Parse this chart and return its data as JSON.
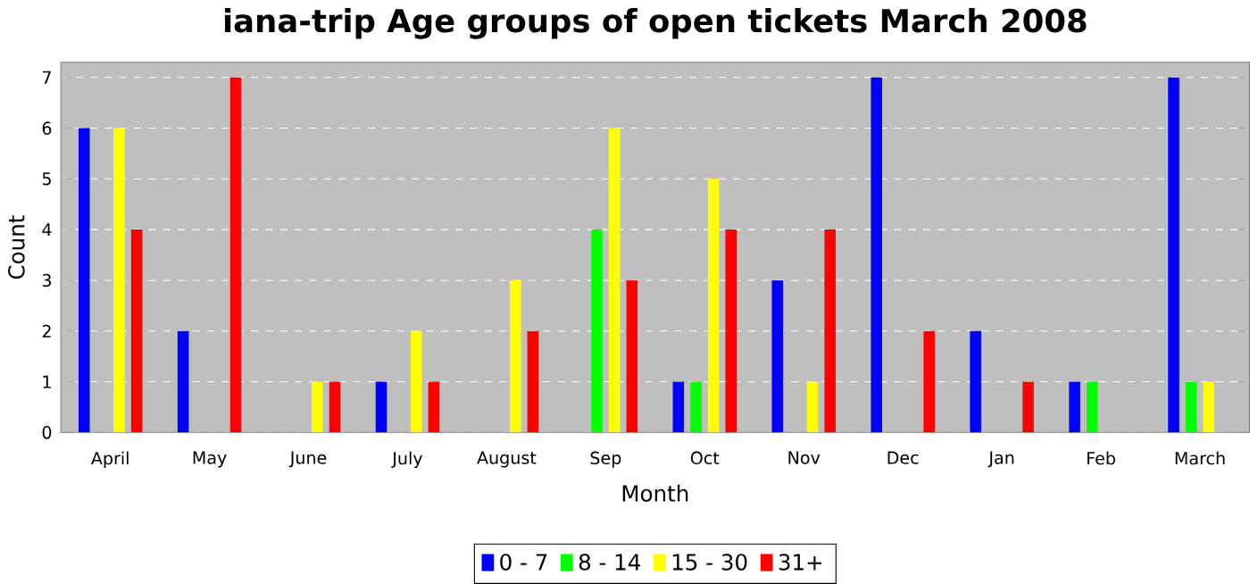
{
  "chart_data": {
    "type": "bar",
    "title": "iana-trip Age groups of open tickets March 2008",
    "xlabel": "Month",
    "ylabel": "Count",
    "categories": [
      "April",
      "May",
      "June",
      "July",
      "August",
      "Sep",
      "Oct",
      "Nov",
      "Dec",
      "Jan",
      "Feb",
      "March"
    ],
    "series": [
      {
        "name": "0 - 7",
        "color": "#0000ff",
        "values": [
          6,
          2,
          0,
          1,
          0,
          0,
          1,
          3,
          7,
          2,
          1,
          7
        ]
      },
      {
        "name": "8 - 14",
        "color": "#00ff00",
        "values": [
          0,
          0,
          0,
          0,
          0,
          4,
          1,
          0,
          0,
          0,
          1,
          1
        ]
      },
      {
        "name": "15 - 30",
        "color": "#ffff00",
        "values": [
          6,
          0,
          1,
          2,
          3,
          6,
          5,
          1,
          0,
          0,
          0,
          1
        ]
      },
      {
        "name": "31+",
        "color": "#ff0000",
        "values": [
          4,
          7,
          1,
          1,
          2,
          3,
          4,
          4,
          2,
          1,
          0,
          0
        ]
      }
    ],
    "ylim": [
      0,
      7.3
    ],
    "yticks": [
      0,
      1,
      2,
      3,
      4,
      5,
      6,
      7
    ],
    "grid": "y",
    "legend": "bottom"
  }
}
